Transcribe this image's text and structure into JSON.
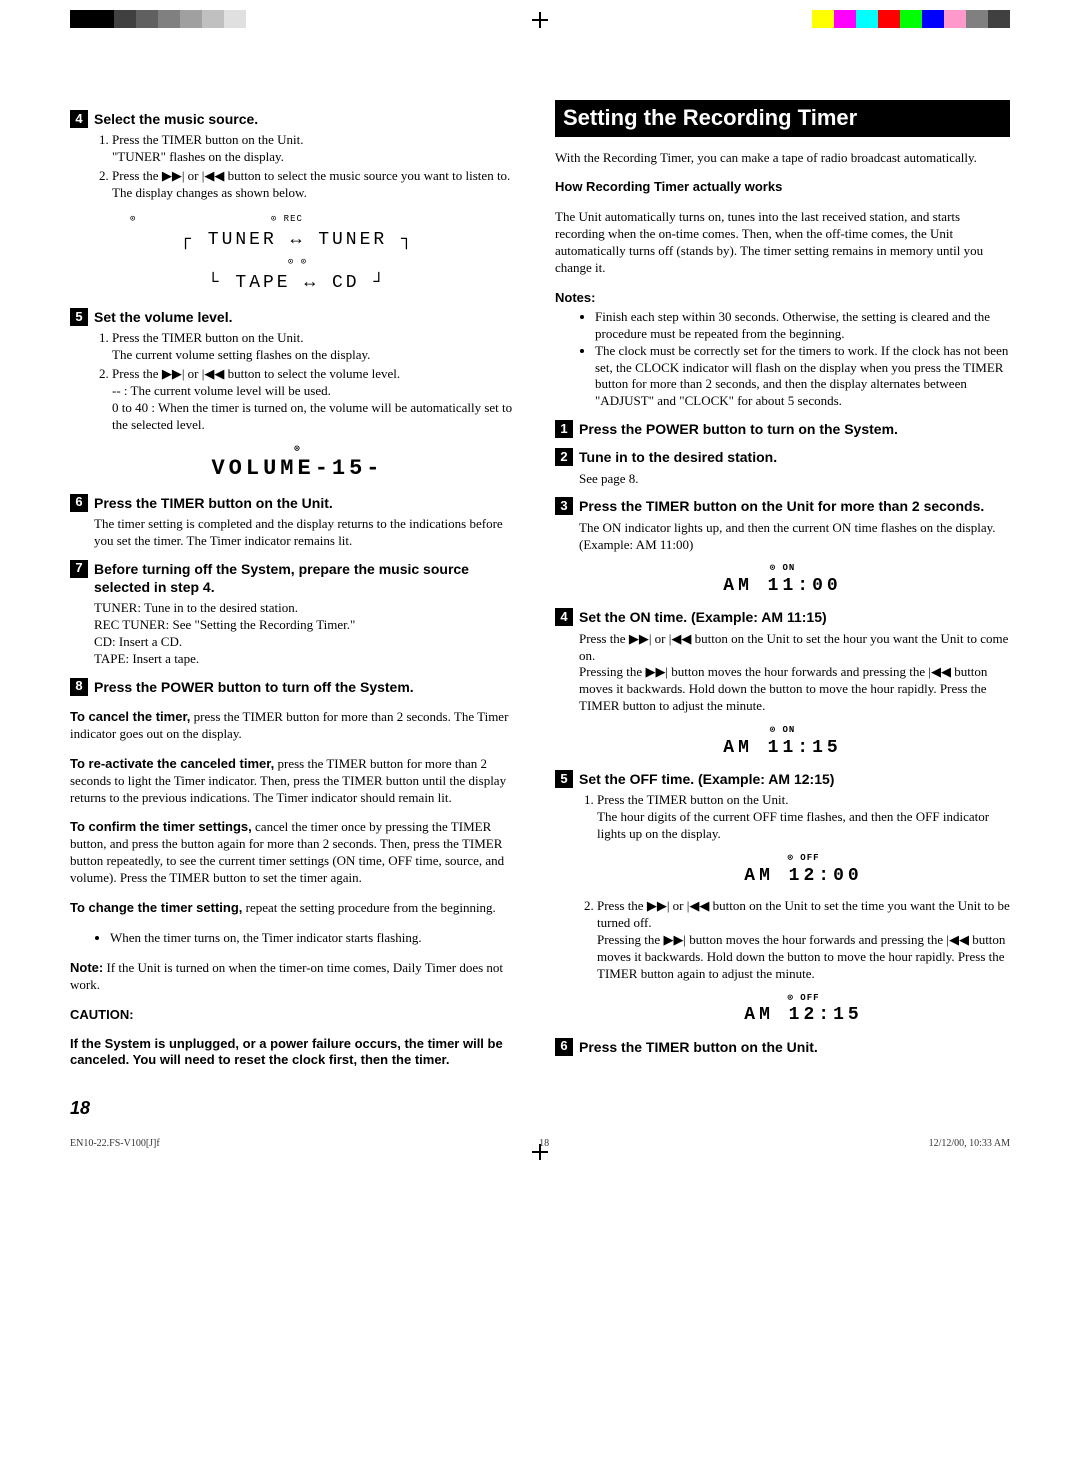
{
  "colorbar_left": [
    "#000000",
    "#000000",
    "#404040",
    "#606060",
    "#808080",
    "#a0a0a0",
    "#c0c0c0",
    "#e0e0e0",
    "#ffffff"
  ],
  "colorbar_right": [
    "#ffff00",
    "#ff00ff",
    "#00ffff",
    "#ff0000",
    "#00ff00",
    "#0000ff",
    "#ff99cc",
    "#808080",
    "#404040"
  ],
  "left": {
    "step4": {
      "num": "4",
      "title": "Select the music source.",
      "li1": "Press the TIMER button on the Unit.",
      "li1b": "\"TUNER\" flashes on the display.",
      "li2": "Press the ▶▶| or |◀◀ button to select the music source you want to listen to.",
      "li2b": "The display changes as shown below.",
      "diagram_rec": "⊙ REC",
      "diagram_l1": "TUNER  ↔  TUNER",
      "diagram_mid": "⊙          ⊙",
      "diagram_l2": "TAPE   ↔   CD"
    },
    "step5": {
      "num": "5",
      "title": "Set the volume level.",
      "li1": "Press the TIMER button on the Unit.",
      "li1b": "The current volume setting flashes on the display.",
      "li2": "Press the ▶▶| or |◀◀ button to select the volume level.",
      "li2a": "--      : The current volume level will be used.",
      "li2b": "0 to 40 : When the timer is turned on, the volume will be automatically set to the selected level.",
      "lcd_top": "⊙",
      "lcd": "VOLUME-15-"
    },
    "step6": {
      "num": "6",
      "title": "Press the TIMER button on the Unit.",
      "body": "The timer setting is completed and the display returns to the indications before you set the timer. The Timer indicator remains lit."
    },
    "step7": {
      "num": "7",
      "title": "Before turning off the System, prepare the music source selected in step 4.",
      "l1": "TUNER: Tune in to the desired station.",
      "l2": "REC TUNER: See \"Setting the Recording Timer.\"",
      "l3": "CD: Insert a CD.",
      "l4": "TAPE: Insert a tape."
    },
    "step8": {
      "num": "8",
      "title": "Press the POWER button to turn off the System."
    },
    "p_cancel": "To cancel the timer, press the TIMER button for more than 2 seconds. The Timer indicator goes out on the display.",
    "p_cancel_label": "To cancel the timer,",
    "p_cancel_rest": " press the TIMER button for more than 2 seconds. The Timer indicator goes out on the display.",
    "p_react_label": "To re-activate the canceled timer,",
    "p_react_rest": " press the TIMER button for more than 2 seconds to light the Timer indicator. Then, press the TIMER button until the display returns to the previous indications. The Timer indicator should remain lit.",
    "p_confirm_label": "To confirm the timer settings,",
    "p_confirm_rest": " cancel the timer once by pressing the TIMER button, and press the button again for more than 2 seconds. Then, press the TIMER button repeatedly, to see the current timer settings (ON time, OFF time, source, and volume). Press the TIMER button to set the timer again.",
    "p_change_label": "To change the timer setting,",
    "p_change_rest": " repeat the setting procedure from the beginning.",
    "bullet1": "When the timer turns on, the Timer indicator starts flashing.",
    "note_label": "Note:",
    "note_text": " If the Unit is turned on when the timer-on time comes, Daily Timer does not work.",
    "caution_head": "CAUTION:",
    "caution_body": "If the System is unplugged, or a power failure occurs, the timer will be canceled. You will need to reset the clock first, then the timer."
  },
  "right": {
    "section_title": "Setting the Recording Timer",
    "intro": "With the Recording Timer, you can make a tape of radio broadcast automatically.",
    "how_head": "How Recording Timer actually works",
    "how_body": "The Unit automatically turns on, tunes into the last received station, and starts recording when the on-time comes. Then, when the off-time comes, the Unit automatically turns off (stands by). The timer setting remains in memory until you change it.",
    "notes_head": "Notes:",
    "note1": "Finish each step within 30 seconds. Otherwise, the setting is cleared and the procedure must be repeated from the beginning.",
    "note2": "The clock must be correctly set for the timers to work. If the clock has not been set, the CLOCK indicator will flash on the display when you press the TIMER button for more than 2 seconds, and then the display alternates between \"ADJUST\" and \"CLOCK\" for about 5 seconds.",
    "step1": {
      "num": "1",
      "title": "Press the POWER button to turn on the System."
    },
    "step2": {
      "num": "2",
      "title": "Tune in to the desired station.",
      "body": "See page 8."
    },
    "step3": {
      "num": "3",
      "title": "Press the TIMER button on the Unit for more than 2 seconds.",
      "body": "The ON indicator lights up, and then the current ON time flashes on the display. (Example: AM 11:00)",
      "lcd_top": "⊙   ON",
      "lcd": "AM  11:00"
    },
    "step4": {
      "num": "4",
      "title": "Set the ON time. (Example: AM 11:15)",
      "body": "Press the ▶▶| or |◀◀ button on the Unit to set the hour you want the Unit to come on.",
      "body2": "Pressing the ▶▶| button moves the hour forwards and pressing the |◀◀ button moves it backwards. Hold down the button to move the hour rapidly. Press the TIMER button to adjust the minute.",
      "lcd_top": "⊙   ON",
      "lcd": "AM  11:15"
    },
    "step5": {
      "num": "5",
      "title": "Set the OFF time. (Example: AM 12:15)",
      "li1": "Press the TIMER button on the Unit.",
      "li1b": "The hour digits of the current OFF time flashes, and then the OFF indicator lights up on the display.",
      "lcd1_top": "⊙   OFF",
      "lcd1": "AM  12:00",
      "li2": "Press the ▶▶| or |◀◀ button on the Unit to set the time you want the Unit to be turned off.",
      "li2b": "Pressing the ▶▶| button moves the hour forwards and pressing the |◀◀ button moves it backwards. Hold down the button to move the hour rapidly. Press the TIMER button again to adjust the minute.",
      "lcd2_top": "⊙   OFF",
      "lcd2": "AM  12:15"
    },
    "step6": {
      "num": "6",
      "title": "Press the TIMER button on the Unit."
    }
  },
  "page_number": "18",
  "footer_left": "EN10-22.FS-V100[J]f",
  "footer_mid": "18",
  "footer_right": "12/12/00, 10:33 AM"
}
